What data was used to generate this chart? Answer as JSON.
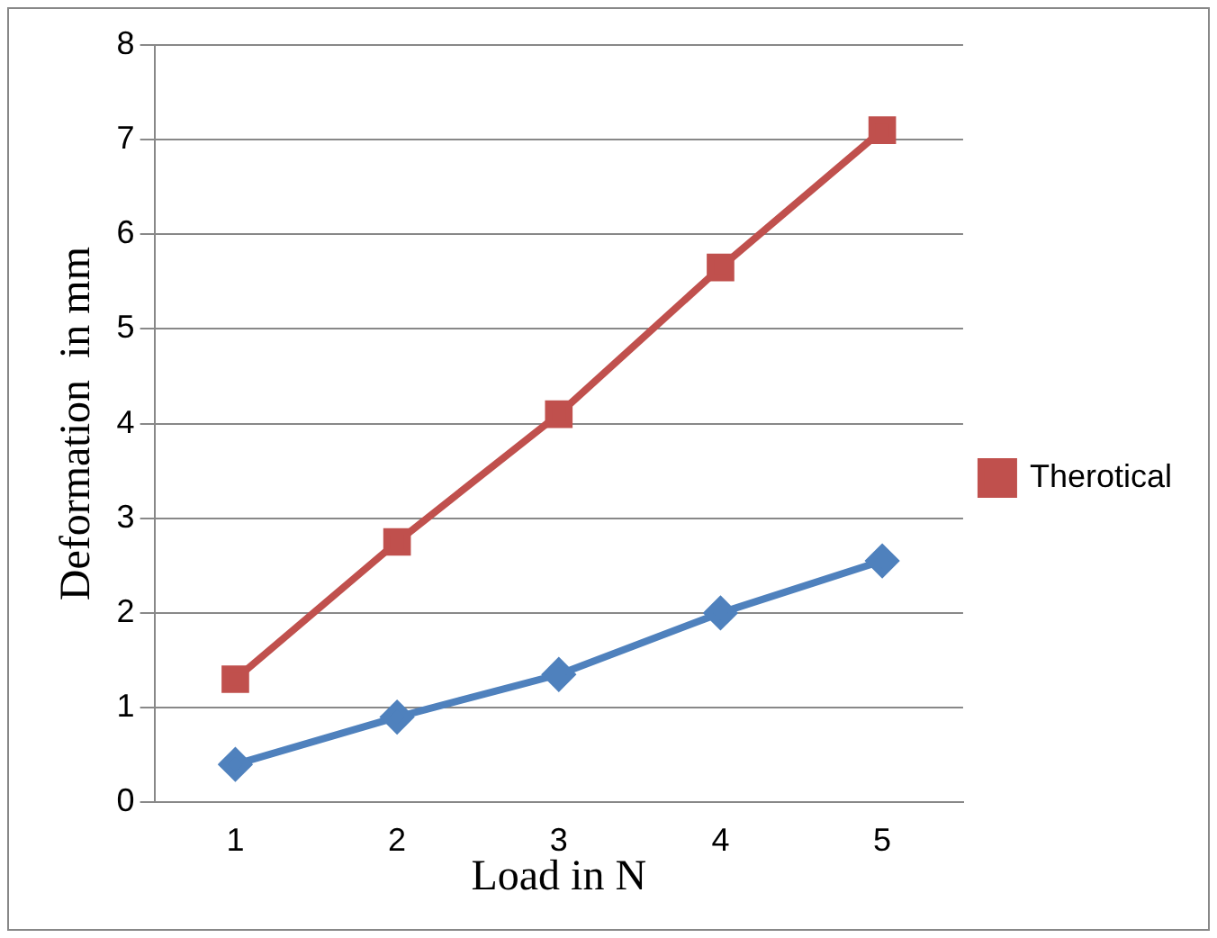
{
  "chart_data": {
    "type": "line",
    "xlabel": "Load in N",
    "ylabel": "Deformation  in mm",
    "categories": [
      "1",
      "2",
      "3",
      "4",
      "5"
    ],
    "series": [
      {
        "name": "Therotical",
        "color": "#c0504d",
        "values": [
          1.3,
          2.75,
          4.1,
          5.65,
          7.1
        ],
        "marker": "square"
      },
      {
        "color": "#4f81bd",
        "values": [
          0.4,
          0.9,
          1.35,
          2.0,
          2.55
        ],
        "marker": "diamond"
      }
    ],
    "ylim": [
      0,
      8
    ],
    "yticks": [
      0,
      1,
      2,
      3,
      4,
      5,
      6,
      7,
      8
    ],
    "grid": "y",
    "legend": "right",
    "line_style": "solid"
  }
}
